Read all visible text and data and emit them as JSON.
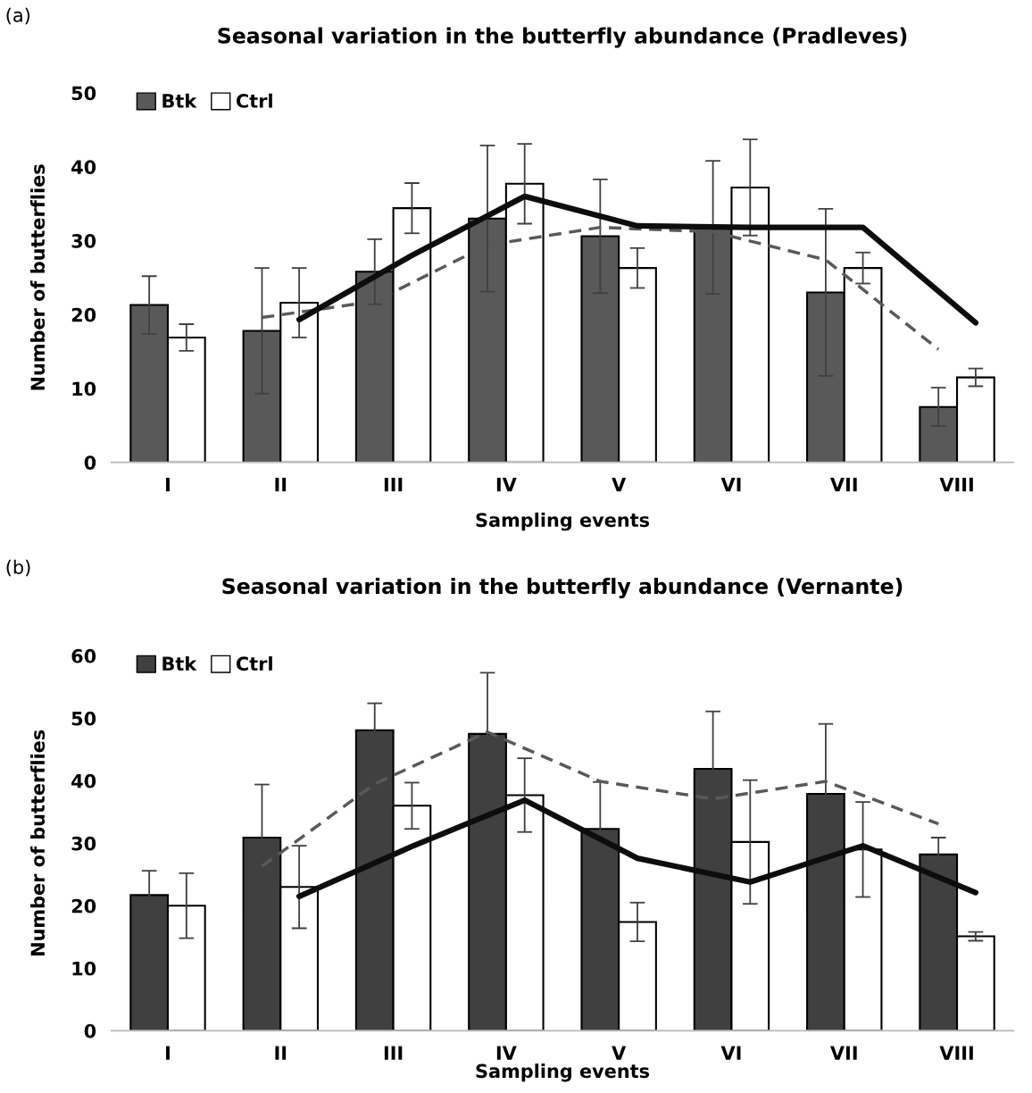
{
  "chart_data": [
    {
      "type": "bar",
      "title": "Seasonal variation in the butterfly abundance (Pradleves)",
      "xlabel": "Sampling events",
      "ylabel": "Number of butterflies",
      "annotations": [
        "(a)"
      ],
      "categories": [
        "I",
        "II",
        "III",
        "IV",
        "V",
        "VI",
        "VII",
        "VIII"
      ],
      "ylim": [
        0,
        50
      ],
      "yticks": [
        0,
        10,
        20,
        30,
        40,
        50
      ],
      "legend": "top left",
      "grid": false,
      "series": [
        {
          "name": "Btk",
          "color": "#595959",
          "values": [
            21.3,
            17.8,
            25.8,
            33.0,
            30.6,
            31.8,
            23.0,
            7.5
          ],
          "errors": [
            3.9,
            8.5,
            4.4,
            9.9,
            7.7,
            9.0,
            11.3,
            2.6
          ]
        },
        {
          "name": "Ctrl",
          "color": "#ffffff",
          "values": [
            16.9,
            21.6,
            34.4,
            37.7,
            26.3,
            37.2,
            26.3,
            11.5
          ],
          "errors": [
            1.8,
            4.7,
            3.4,
            5.4,
            2.7,
            6.5,
            2.1,
            1.2
          ]
        },
        {
          "type": "line",
          "color": "#595959",
          "line_style": "dashed",
          "values": [
            null,
            19.6,
            21.8,
            29.4,
            31.8,
            31.2,
            27.4,
            15.3
          ]
        },
        {
          "type": "line",
          "color": "#0d0d0d",
          "line_style": "solid",
          "values": [
            null,
            19.3,
            28.0,
            36.0,
            32.0,
            31.8,
            31.8,
            18.9
          ]
        }
      ]
    },
    {
      "type": "bar",
      "title": "Seasonal variation in the butterfly abundance (Vernante)",
      "xlabel": "Sampling events",
      "ylabel": "Number of butterflies",
      "annotations": [
        "(b)"
      ],
      "categories": [
        "I",
        "II",
        "III",
        "IV",
        "V",
        "VI",
        "VII",
        "VIII"
      ],
      "ylim": [
        0,
        60
      ],
      "yticks": [
        0,
        10,
        20,
        30,
        40,
        50,
        60
      ],
      "legend": "top left",
      "grid": false,
      "series": [
        {
          "name": "Btk",
          "color": "#404040",
          "values": [
            21.7,
            30.9,
            48.1,
            47.5,
            32.3,
            41.9,
            37.9,
            28.2
          ],
          "errors": [
            3.9,
            8.5,
            4.3,
            9.8,
            7.5,
            9.2,
            11.2,
            2.7
          ]
        },
        {
          "name": "Ctrl",
          "color": "#ffffff",
          "values": [
            20.0,
            23.0,
            36.0,
            37.7,
            17.4,
            30.2,
            29.0,
            15.1
          ],
          "errors": [
            5.2,
            6.6,
            3.7,
            5.9,
            3.1,
            9.9,
            7.6,
            0.7
          ]
        },
        {
          "type": "line",
          "color": "#595959",
          "line_style": "dashed",
          "values": [
            null,
            26.3,
            39.5,
            47.8,
            39.9,
            37.1,
            39.9,
            33.1
          ]
        },
        {
          "type": "line",
          "color": "#0d0d0d",
          "line_style": "solid",
          "values": [
            null,
            21.5,
            29.5,
            36.9,
            27.6,
            23.8,
            29.6,
            22.1
          ]
        }
      ]
    }
  ]
}
